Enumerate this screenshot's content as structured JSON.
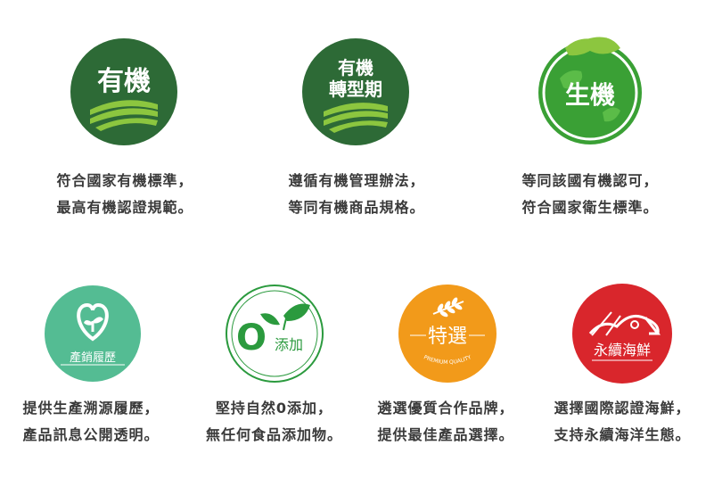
{
  "colors": {
    "organic_green": "#2d6a36",
    "transition_green": "#2d6a36",
    "bio_green": "#3aa035",
    "trace_teal": "#54bc93",
    "zero_green": "#2b9a3e",
    "select_orange": "#f29a1a",
    "seafood_red": "#d9262c",
    "text_dark": "#3a3a3a",
    "text_teal": "#4a7c72"
  },
  "badges": {
    "organic": {
      "line1": "有機",
      "icon": "field-icon"
    },
    "transition": {
      "line1": "有機",
      "line2": "轉型期",
      "icon": "field-icon"
    },
    "bio": {
      "line1": "生機",
      "icon": "globe-leaf-icon"
    },
    "trace": {
      "label": "產銷履歷",
      "icon": "heart-sprout-icon"
    },
    "zero": {
      "digit": "O",
      "label": "添加",
      "icon": "leaf-icon"
    },
    "select": {
      "label": "特選",
      "ribbon": "PREMIUM QUALITY",
      "icon": "wheat-icon"
    },
    "seafood": {
      "label": "永續海鮮",
      "icon": "fish-icon"
    }
  },
  "descriptions": {
    "organic": [
      "符合國家有機標準，",
      "最高有機認證規範。"
    ],
    "transition": [
      "遵循有機管理辦法，",
      "等同有機商品規格。"
    ],
    "bio": [
      "等同該國有機認可，",
      "符合國家衛生標準。"
    ],
    "trace": [
      "提供生產溯源履歷，",
      "產品訊息公開透明。"
    ],
    "zero": [
      "堅持自然0添加，",
      "無任何食品添加物。"
    ],
    "select": [
      "遴選優質合作品牌，",
      "提供最佳產品選擇。"
    ],
    "seafood": [
      "選擇國際認證海鮮，",
      "支持永續海洋生態。"
    ]
  }
}
